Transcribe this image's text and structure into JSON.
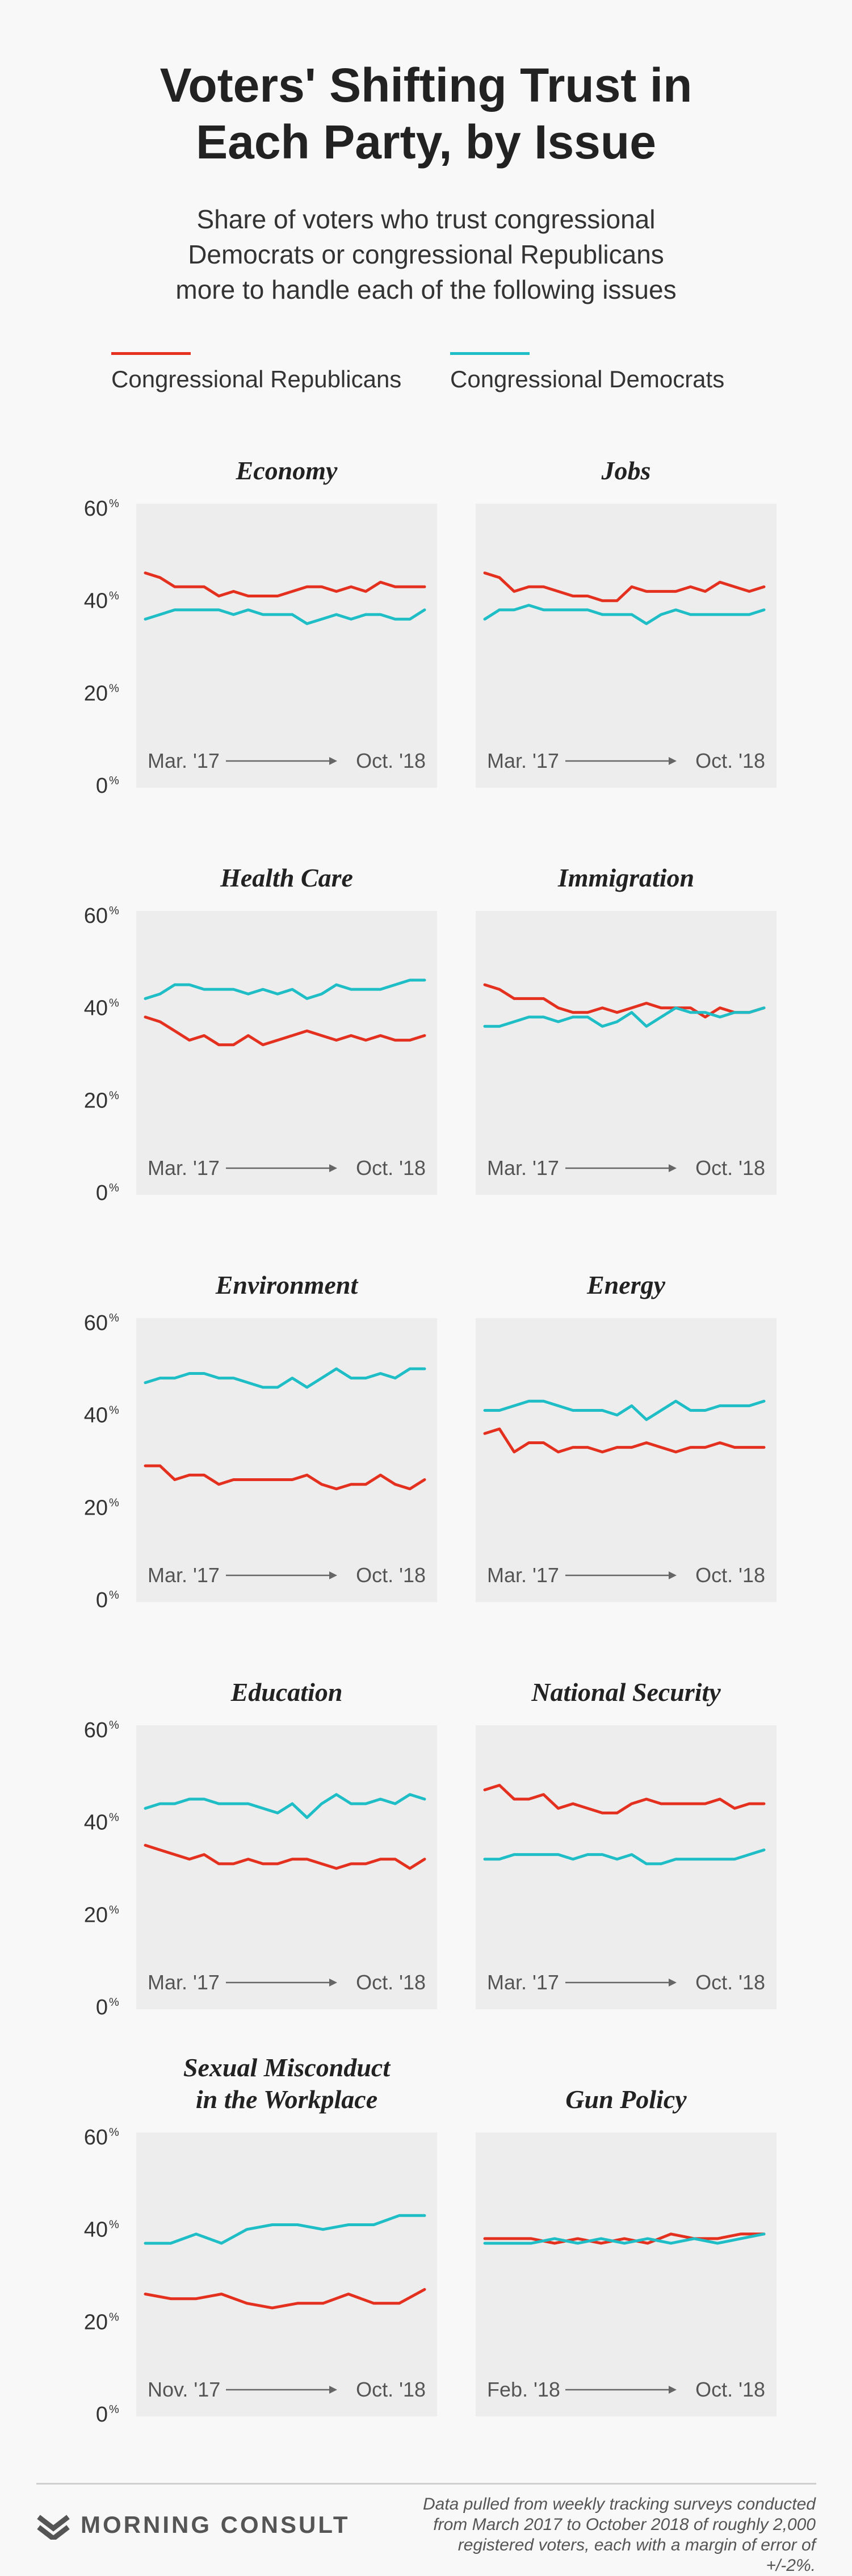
{
  "header": {
    "title_line1": "Voters' Shifting Trust in",
    "title_line2": "Each Party, by Issue",
    "subtitle_line1": "Share of voters who trust congressional",
    "subtitle_line2": "Democrats or congressional Republicans",
    "subtitle_line3": "more to handle each of the following issues"
  },
  "legend": {
    "republicans": {
      "label": "Congressional Republicans",
      "color": "#e4301e"
    },
    "democrats": {
      "label": "Congressional Democrats",
      "color": "#1fbec6"
    }
  },
  "footer": {
    "brand": "MORNING CONSULT",
    "note_line1": "Data pulled from weekly tracking surveys conducted",
    "note_line2": "from March 2017 to October 2018 of roughly 2,000",
    "note_line3": "registered voters, each with a margin of error of +/-2%."
  },
  "chart_data": [
    {
      "type": "line",
      "title": "Economy",
      "ylim": [
        0,
        60
      ],
      "yticks": [
        "60",
        "40",
        "20",
        "0"
      ],
      "ytick_unit": "%",
      "x_start": "Mar. '17",
      "x_end": "Oct. '18",
      "series": [
        {
          "name": "Congressional Republicans",
          "values": [
            46,
            45,
            43,
            43,
            43,
            41,
            42,
            41,
            41,
            41,
            42,
            43,
            43,
            42,
            43,
            42,
            44,
            43,
            43,
            43
          ]
        },
        {
          "name": "Congressional Democrats",
          "values": [
            36,
            37,
            38,
            38,
            38,
            38,
            37,
            38,
            37,
            37,
            37,
            35,
            36,
            37,
            36,
            37,
            37,
            36,
            36,
            38
          ]
        }
      ]
    },
    {
      "type": "line",
      "title": "Jobs",
      "ylim": [
        0,
        60
      ],
      "yticks": [
        "60",
        "40",
        "20",
        "0"
      ],
      "ytick_unit": "%",
      "x_start": "Mar. '17",
      "x_end": "Oct. '18",
      "series": [
        {
          "name": "Congressional Republicans",
          "values": [
            46,
            45,
            42,
            43,
            43,
            42,
            41,
            41,
            40,
            40,
            43,
            42,
            42,
            42,
            43,
            42,
            44,
            43,
            42,
            43
          ]
        },
        {
          "name": "Congressional Democrats",
          "values": [
            36,
            38,
            38,
            39,
            38,
            38,
            38,
            38,
            37,
            37,
            37,
            35,
            37,
            38,
            37,
            37,
            37,
            37,
            37,
            38
          ]
        }
      ]
    },
    {
      "type": "line",
      "title": "Health Care",
      "ylim": [
        0,
        60
      ],
      "yticks": [
        "60",
        "40",
        "20",
        "0"
      ],
      "ytick_unit": "%",
      "x_start": "Mar. '17",
      "x_end": "Oct. '18",
      "series": [
        {
          "name": "Congressional Republicans",
          "values": [
            38,
            37,
            35,
            33,
            34,
            32,
            32,
            34,
            32,
            33,
            34,
            35,
            34,
            33,
            34,
            33,
            34,
            33,
            33,
            34
          ]
        },
        {
          "name": "Congressional Democrats",
          "values": [
            42,
            43,
            45,
            45,
            44,
            44,
            44,
            43,
            44,
            43,
            44,
            42,
            43,
            45,
            44,
            44,
            44,
            45,
            46,
            46
          ]
        }
      ]
    },
    {
      "type": "line",
      "title": "Immigration",
      "ylim": [
        0,
        60
      ],
      "yticks": [
        "60",
        "40",
        "20",
        "0"
      ],
      "ytick_unit": "%",
      "x_start": "Mar. '17",
      "x_end": "Oct. '18",
      "series": [
        {
          "name": "Congressional Republicans",
          "values": [
            45,
            44,
            42,
            42,
            42,
            40,
            39,
            39,
            40,
            39,
            40,
            41,
            40,
            40,
            40,
            38,
            40,
            39,
            39,
            40
          ]
        },
        {
          "name": "Congressional Democrats",
          "values": [
            36,
            36,
            37,
            38,
            38,
            37,
            38,
            38,
            36,
            37,
            39,
            36,
            38,
            40,
            39,
            39,
            38,
            39,
            39,
            40
          ]
        }
      ]
    },
    {
      "type": "line",
      "title": "Environment",
      "ylim": [
        0,
        60
      ],
      "yticks": [
        "60",
        "40",
        "20",
        "0"
      ],
      "ytick_unit": "%",
      "x_start": "Mar. '17",
      "x_end": "Oct. '18",
      "series": [
        {
          "name": "Congressional Republicans",
          "values": [
            29,
            29,
            26,
            27,
            27,
            25,
            26,
            26,
            26,
            26,
            26,
            27,
            25,
            24,
            25,
            25,
            27,
            25,
            24,
            26
          ]
        },
        {
          "name": "Congressional Democrats",
          "values": [
            47,
            48,
            48,
            49,
            49,
            48,
            48,
            47,
            46,
            46,
            48,
            46,
            48,
            50,
            48,
            48,
            49,
            48,
            50,
            50
          ]
        }
      ]
    },
    {
      "type": "line",
      "title": "Energy",
      "ylim": [
        0,
        60
      ],
      "yticks": [
        "60",
        "40",
        "20",
        "0"
      ],
      "ytick_unit": "%",
      "x_start": "Mar. '17",
      "x_end": "Oct. '18",
      "series": [
        {
          "name": "Congressional Republicans",
          "values": [
            36,
            37,
            32,
            34,
            34,
            32,
            33,
            33,
            32,
            33,
            33,
            34,
            33,
            32,
            33,
            33,
            34,
            33,
            33,
            33
          ]
        },
        {
          "name": "Congressional Democrats",
          "values": [
            41,
            41,
            42,
            43,
            43,
            42,
            41,
            41,
            41,
            40,
            42,
            39,
            41,
            43,
            41,
            41,
            42,
            42,
            42,
            43
          ]
        }
      ]
    },
    {
      "type": "line",
      "title": "Education",
      "ylim": [
        0,
        60
      ],
      "yticks": [
        "60",
        "40",
        "20",
        "0"
      ],
      "ytick_unit": "%",
      "x_start": "Mar. '17",
      "x_end": "Oct. '18",
      "series": [
        {
          "name": "Congressional Republicans",
          "values": [
            35,
            34,
            33,
            32,
            33,
            31,
            31,
            32,
            31,
            31,
            32,
            32,
            31,
            30,
            31,
            31,
            32,
            32,
            30,
            32
          ]
        },
        {
          "name": "Congressional Democrats",
          "values": [
            43,
            44,
            44,
            45,
            45,
            44,
            44,
            44,
            43,
            42,
            44,
            41,
            44,
            46,
            44,
            44,
            45,
            44,
            46,
            45
          ]
        }
      ]
    },
    {
      "type": "line",
      "title": "National Security",
      "ylim": [
        0,
        60
      ],
      "yticks": [
        "60",
        "40",
        "20",
        "0"
      ],
      "ytick_unit": "%",
      "x_start": "Mar. '17",
      "x_end": "Oct. '18",
      "series": [
        {
          "name": "Congressional Republicans",
          "values": [
            47,
            48,
            45,
            45,
            46,
            43,
            44,
            43,
            42,
            42,
            44,
            45,
            44,
            44,
            44,
            44,
            45,
            43,
            44,
            44
          ]
        },
        {
          "name": "Congressional Democrats",
          "values": [
            32,
            32,
            33,
            33,
            33,
            33,
            32,
            33,
            33,
            32,
            33,
            31,
            31,
            32,
            32,
            32,
            32,
            32,
            33,
            34
          ]
        }
      ]
    },
    {
      "type": "line",
      "title": "Sexual Misconduct\nin the Workplace",
      "ylim": [
        0,
        60
      ],
      "yticks": [
        "60",
        "40",
        "20",
        "0"
      ],
      "ytick_unit": "%",
      "x_start": "Nov. '17",
      "x_end": "Oct. '18",
      "series": [
        {
          "name": "Congressional Republicans",
          "values": [
            26,
            25,
            25,
            26,
            24,
            23,
            24,
            24,
            26,
            24,
            24,
            27
          ]
        },
        {
          "name": "Congressional Democrats",
          "values": [
            37,
            37,
            39,
            37,
            40,
            41,
            41,
            40,
            41,
            41,
            43,
            43
          ]
        }
      ]
    },
    {
      "type": "line",
      "title": "Gun Policy",
      "ylim": [
        0,
        60
      ],
      "yticks": [
        "60",
        "40",
        "20",
        "0"
      ],
      "ytick_unit": "%",
      "x_start": "Feb. '18",
      "x_end": "Oct. '18",
      "series": [
        {
          "name": "Congressional Republicans",
          "values": [
            38,
            38,
            38,
            37,
            38,
            37,
            38,
            37,
            39,
            38,
            38,
            39,
            39
          ]
        },
        {
          "name": "Congressional Democrats",
          "values": [
            37,
            37,
            37,
            38,
            37,
            38,
            37,
            38,
            37,
            38,
            37,
            38,
            39
          ]
        }
      ]
    }
  ]
}
